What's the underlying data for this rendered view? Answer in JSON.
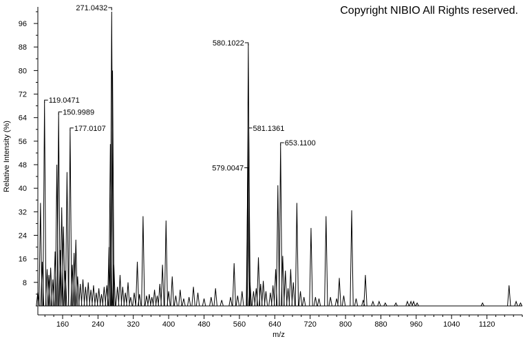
{
  "copyright": "Copyright NIBIO All Rights reserved.",
  "chart_data": {
    "type": "line",
    "xlabel": "m/z",
    "ylabel": "Relative Intensity (%)",
    "xlim": [
      104,
      1200
    ],
    "ylim": [
      0,
      100
    ],
    "x_ticks": [
      160,
      240,
      320,
      400,
      480,
      560,
      640,
      720,
      800,
      880,
      960,
      1040,
      1120
    ],
    "y_ticks": [
      8,
      16,
      24,
      32,
      40,
      48,
      56,
      64,
      72,
      80,
      88,
      96
    ],
    "grid": false,
    "peaks": [
      {
        "x": 104,
        "y": 4.8
      },
      {
        "x": 110,
        "y": 35.0
      },
      {
        "x": 114,
        "y": 15.0
      },
      {
        "x": 119.0471,
        "y": 69.5,
        "label": "119.0471"
      },
      {
        "x": 125,
        "y": 12.5
      },
      {
        "x": 129,
        "y": 10.5
      },
      {
        "x": 133,
        "y": 13.0
      },
      {
        "x": 138,
        "y": 9.0
      },
      {
        "x": 143,
        "y": 18.5
      },
      {
        "x": 147,
        "y": 48.0
      },
      {
        "x": 150.9989,
        "y": 65.5,
        "label": "150.9989"
      },
      {
        "x": 155,
        "y": 19.0
      },
      {
        "x": 158,
        "y": 33.5
      },
      {
        "x": 162,
        "y": 27.0
      },
      {
        "x": 166,
        "y": 12.0
      },
      {
        "x": 170,
        "y": 45.5
      },
      {
        "x": 177.0107,
        "y": 60.0,
        "label": "177.0107"
      },
      {
        "x": 182,
        "y": 14.0
      },
      {
        "x": 186,
        "y": 18.0
      },
      {
        "x": 190,
        "y": 22.5
      },
      {
        "x": 194,
        "y": 10.0
      },
      {
        "x": 200,
        "y": 7.5
      },
      {
        "x": 206,
        "y": 9.0
      },
      {
        "x": 212,
        "y": 6.5
      },
      {
        "x": 218,
        "y": 8.0
      },
      {
        "x": 224,
        "y": 5.5
      },
      {
        "x": 230,
        "y": 7.0
      },
      {
        "x": 236,
        "y": 4.5
      },
      {
        "x": 242,
        "y": 6.0
      },
      {
        "x": 248,
        "y": 4.0
      },
      {
        "x": 254,
        "y": 6.5
      },
      {
        "x": 260,
        "y": 7.0
      },
      {
        "x": 265,
        "y": 20.0
      },
      {
        "x": 268,
        "y": 55.0
      },
      {
        "x": 271.0432,
        "y": 100.0,
        "label": "271.0432"
      },
      {
        "x": 273,
        "y": 80.0
      },
      {
        "x": 276,
        "y": 14.0
      },
      {
        "x": 284,
        "y": 6.5
      },
      {
        "x": 290,
        "y": 10.5
      },
      {
        "x": 296,
        "y": 6.5
      },
      {
        "x": 302,
        "y": 4.5
      },
      {
        "x": 308,
        "y": 8.0
      },
      {
        "x": 314,
        "y": 3.0
      },
      {
        "x": 322,
        "y": 4.5
      },
      {
        "x": 329,
        "y": 15.0
      },
      {
        "x": 334,
        "y": 4.0
      },
      {
        "x": 342,
        "y": 30.5
      },
      {
        "x": 350,
        "y": 3.5
      },
      {
        "x": 356,
        "y": 4.0
      },
      {
        "x": 362,
        "y": 3.0
      },
      {
        "x": 368,
        "y": 5.5
      },
      {
        "x": 374,
        "y": 3.5
      },
      {
        "x": 380,
        "y": 7.5
      },
      {
        "x": 386,
        "y": 14.0
      },
      {
        "x": 394,
        "y": 29.0
      },
      {
        "x": 400,
        "y": 5.0
      },
      {
        "x": 408,
        "y": 10.0
      },
      {
        "x": 416,
        "y": 3.5
      },
      {
        "x": 426,
        "y": 5.5
      },
      {
        "x": 434,
        "y": 2.5
      },
      {
        "x": 446,
        "y": 3.0
      },
      {
        "x": 456,
        "y": 6.5
      },
      {
        "x": 466,
        "y": 4.5
      },
      {
        "x": 480,
        "y": 2.5
      },
      {
        "x": 496,
        "y": 3.0
      },
      {
        "x": 506,
        "y": 6.0
      },
      {
        "x": 520,
        "y": 2.0
      },
      {
        "x": 540,
        "y": 3.0
      },
      {
        "x": 548,
        "y": 14.5
      },
      {
        "x": 556,
        "y": 3.5
      },
      {
        "x": 566,
        "y": 5.0
      },
      {
        "x": 579.0047,
        "y": 46.5,
        "label": "579.0047"
      },
      {
        "x": 580.1022,
        "y": 89.0,
        "label": "580.1022"
      },
      {
        "x": 581.1361,
        "y": 60.0,
        "label": "581.1361"
      },
      {
        "x": 584,
        "y": 8.0
      },
      {
        "x": 592,
        "y": 5.0
      },
      {
        "x": 598,
        "y": 6.0
      },
      {
        "x": 603,
        "y": 16.5
      },
      {
        "x": 608,
        "y": 7.5
      },
      {
        "x": 614,
        "y": 8.5
      },
      {
        "x": 620,
        "y": 5.0
      },
      {
        "x": 630,
        "y": 4.5
      },
      {
        "x": 636,
        "y": 7.0
      },
      {
        "x": 642,
        "y": 12.5
      },
      {
        "x": 647,
        "y": 41.0
      },
      {
        "x": 653.11,
        "y": 55.0,
        "label": "653.1100"
      },
      {
        "x": 658,
        "y": 17.0
      },
      {
        "x": 664,
        "y": 12.0
      },
      {
        "x": 670,
        "y": 6.0
      },
      {
        "x": 676,
        "y": 12.5
      },
      {
        "x": 682,
        "y": 8.0
      },
      {
        "x": 690,
        "y": 35.0
      },
      {
        "x": 698,
        "y": 5.0
      },
      {
        "x": 706,
        "y": 3.0
      },
      {
        "x": 722,
        "y": 26.5
      },
      {
        "x": 732,
        "y": 3.0
      },
      {
        "x": 740,
        "y": 2.5
      },
      {
        "x": 756,
        "y": 30.5
      },
      {
        "x": 766,
        "y": 3.0
      },
      {
        "x": 780,
        "y": 2.5
      },
      {
        "x": 786,
        "y": 9.5
      },
      {
        "x": 796,
        "y": 3.5
      },
      {
        "x": 814,
        "y": 32.5
      },
      {
        "x": 824,
        "y": 2.5
      },
      {
        "x": 840,
        "y": 2.0
      },
      {
        "x": 845,
        "y": 10.5
      },
      {
        "x": 862,
        "y": 1.5
      },
      {
        "x": 876,
        "y": 1.5
      },
      {
        "x": 890,
        "y": 1.0
      },
      {
        "x": 914,
        "y": 1.0
      },
      {
        "x": 940,
        "y": 1.5
      },
      {
        "x": 948,
        "y": 1.5
      },
      {
        "x": 954,
        "y": 1.5
      },
      {
        "x": 962,
        "y": 1.0
      },
      {
        "x": 1110,
        "y": 1.0
      },
      {
        "x": 1170,
        "y": 7.0
      },
      {
        "x": 1186,
        "y": 1.5
      },
      {
        "x": 1196,
        "y": 1.0
      }
    ]
  }
}
